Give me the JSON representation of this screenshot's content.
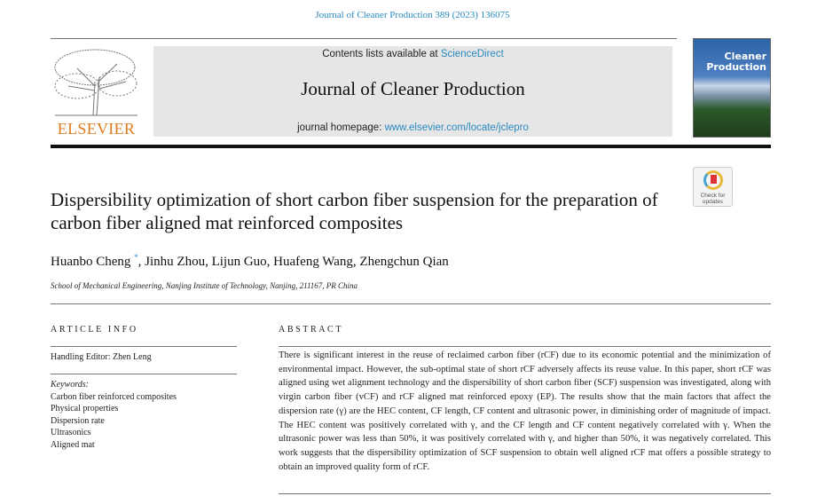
{
  "header": {
    "citation": "Journal of Cleaner Production 389 (2023) 136075",
    "contents_prefix": "Contents lists available at ",
    "contents_link": "ScienceDirect",
    "journal_title": "Journal of Cleaner Production",
    "homepage_prefix": "journal homepage: ",
    "homepage_link": "www.elsevier.com/locate/jclepro",
    "publisher": "ELSEVIER",
    "cover_title_line1": "Cleaner",
    "cover_title_line2": "Production"
  },
  "badge": {
    "line1": "Check for",
    "line2": "updates"
  },
  "article": {
    "title": "Dispersibility optimization of short carbon fiber suspension for the preparation of carbon fiber aligned mat reinforced composites",
    "authors": [
      {
        "name": "Huanbo Cheng",
        "mark": "*"
      },
      {
        "name": "Jinhu Zhou"
      },
      {
        "name": "Lijun Guo"
      },
      {
        "name": "Huafeng Wang"
      },
      {
        "name": "Zhengchun Qian"
      }
    ],
    "affiliation": "School of Mechanical Engineering, Nanjing Institute of Technology, Nanjing, 211167, PR China"
  },
  "info": {
    "heading": "ARTICLE INFO",
    "handling_editor": "Handling Editor: Zhen Leng",
    "keywords_label": "Keywords:",
    "keywords": [
      "Carbon fiber reinforced composites",
      "Physical properties",
      "Dispersion rate",
      "Ultrasonics",
      "Aligned mat"
    ]
  },
  "abstract": {
    "heading": "ABSTRACT",
    "text": "There is significant interest in the reuse of reclaimed carbon fiber (rCF) due to its economic potential and the minimization of environmental impact. However, the sub-optimal state of short rCF adversely affects its reuse value. In this paper, short rCF was aligned using wet alignment technology and the dispersibility of short carbon fiber (SCF) suspension was investigated, along with virgin carbon fiber (vCF) and rCF aligned mat reinforced epoxy (EP). The results show that the main factors that affect the dispersion rate (γ) are the HEC content, CF length, CF content and ultrasonic power, in diminishing order of magnitude of impact. The HEC content was positively correlated with γ, and the CF length and CF content negatively correlated with γ. When the ultrasonic power was less than 50%, it was positively correlated with γ, and higher than 50%, it was negatively correlated. This work suggests that the dispersibility optimization of SCF suspension to obtain well aligned rCF mat offers a possible strategy to obtain an improved quality form of rCF."
  },
  "colors": {
    "link": "#2a8ac0",
    "elsevier": "#e07b1b",
    "banner_bg": "#e6e6e6"
  }
}
